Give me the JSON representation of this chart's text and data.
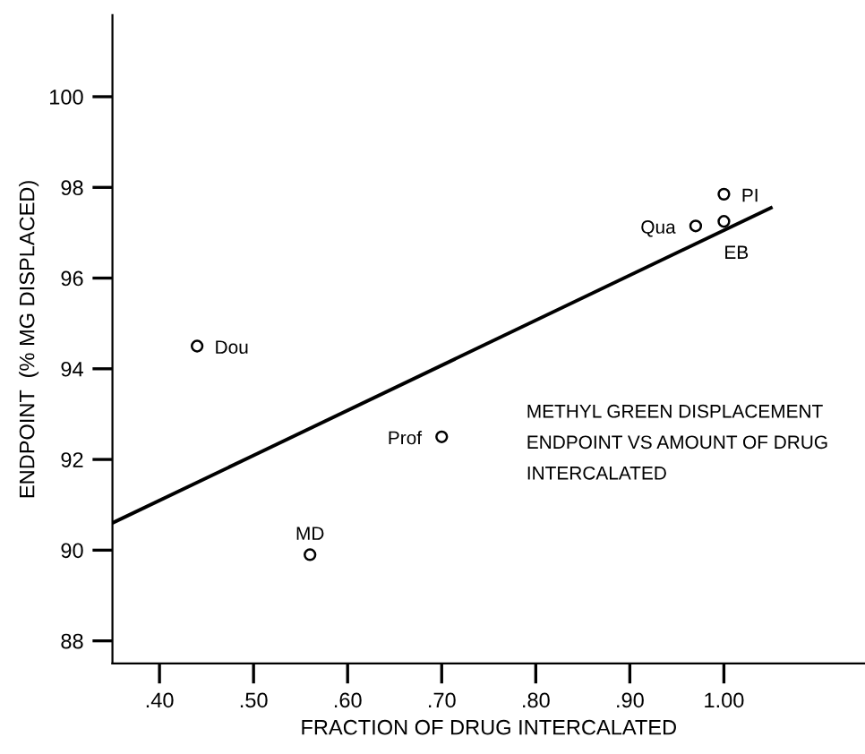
{
  "chart_data": {
    "type": "scatter",
    "xlabel": "FRACTION OF DRUG INTERCALATED",
    "ylabel": "ENDPOINT  (% MG DISPLACED)",
    "xlim": [
      0.35,
      1.15
    ],
    "ylim": [
      87.5,
      101.8
    ],
    "xticks": [
      {
        "value": 0.4,
        "label": ".40"
      },
      {
        "value": 0.5,
        "label": ".50"
      },
      {
        "value": 0.6,
        "label": ".60"
      },
      {
        "value": 0.7,
        "label": ".70"
      },
      {
        "value": 0.8,
        "label": ".80"
      },
      {
        "value": 0.9,
        "label": ".90"
      },
      {
        "value": 1.0,
        "label": "1.00"
      }
    ],
    "yticks": [
      88,
      90,
      92,
      94,
      96,
      98,
      100
    ],
    "grid": false,
    "legend": false,
    "series": [
      {
        "color": "#000000",
        "marker": "circle",
        "x": [
          0.44,
          0.56,
          0.7,
          0.97,
          1.0,
          1.0
        ],
        "values": [
          94.5,
          89.9,
          92.5,
          97.15,
          97.85,
          97.25
        ]
      },
      {
        "type": "line",
        "marker": "none",
        "color": "#000000",
        "x": [
          0.35,
          1.05
        ],
        "values": [
          90.6,
          97.55
        ]
      }
    ],
    "annotations": [
      {
        "text": "Dou",
        "x": 0.44,
        "y": 94.5
      },
      {
        "text": "MD",
        "x": 0.56,
        "y": 89.9
      },
      {
        "text": "Prof",
        "x": 0.7,
        "y": 92.5
      },
      {
        "text": "Qua",
        "x": 0.97,
        "y": 97.15
      },
      {
        "text": "PI",
        "x": 1.0,
        "y": 97.85
      },
      {
        "text": "EB",
        "x": 1.0,
        "y": 97.25
      },
      "METHYL GREEN DISPLACEMENT\nENDPOINT VS AMOUNT OF DRUG\nINTERCALATED"
    ]
  }
}
